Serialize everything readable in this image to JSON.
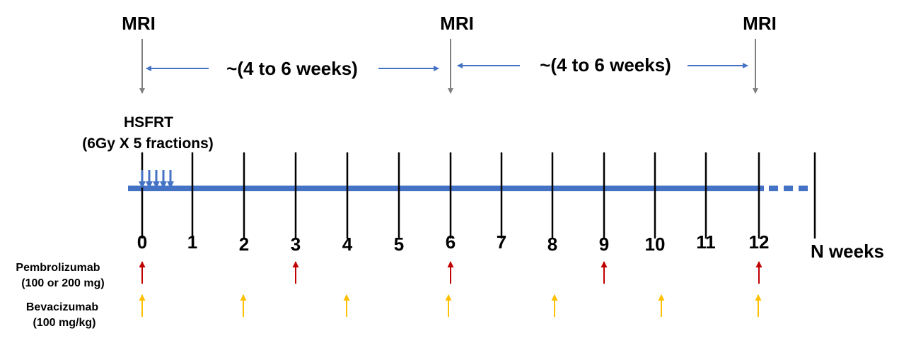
{
  "colors": {
    "timeline": "#4472c4",
    "interval_arrow": "#4472c4",
    "mri_arrow": "#808080",
    "pembrolizumab": "#c00000",
    "bevacizumab": "#ffc000",
    "text": "#000000"
  },
  "mri": {
    "label": "MRI",
    "weeks": [
      0,
      6,
      12
    ]
  },
  "intervals": [
    {
      "label": "~(4 to 6 weeks)",
      "from_week": 0,
      "to_week": 6
    },
    {
      "label": "~(4 to 6 weeks)",
      "from_week": 6,
      "to_week": 12
    }
  ],
  "radiotherapy": {
    "line1": "HSFRT",
    "line2": "(6Gy X 5 fractions)",
    "fractions": 5
  },
  "timeline": {
    "ticks": [
      "0",
      "1",
      "2",
      "3",
      "4",
      "5",
      "6",
      "7",
      "8",
      "9",
      "10",
      "11",
      "12"
    ],
    "end_label": "N weeks"
  },
  "drugs": {
    "pembrolizumab": {
      "name": "Pembrolizumab",
      "dose": "(100 or 200 mg)",
      "weeks": [
        0,
        3,
        6,
        9,
        12
      ]
    },
    "bevacizumab": {
      "name": "Bevacizumab",
      "dose": "(100 mg/kg)",
      "weeks": [
        0,
        2,
        4,
        6,
        8,
        10,
        12
      ]
    }
  }
}
